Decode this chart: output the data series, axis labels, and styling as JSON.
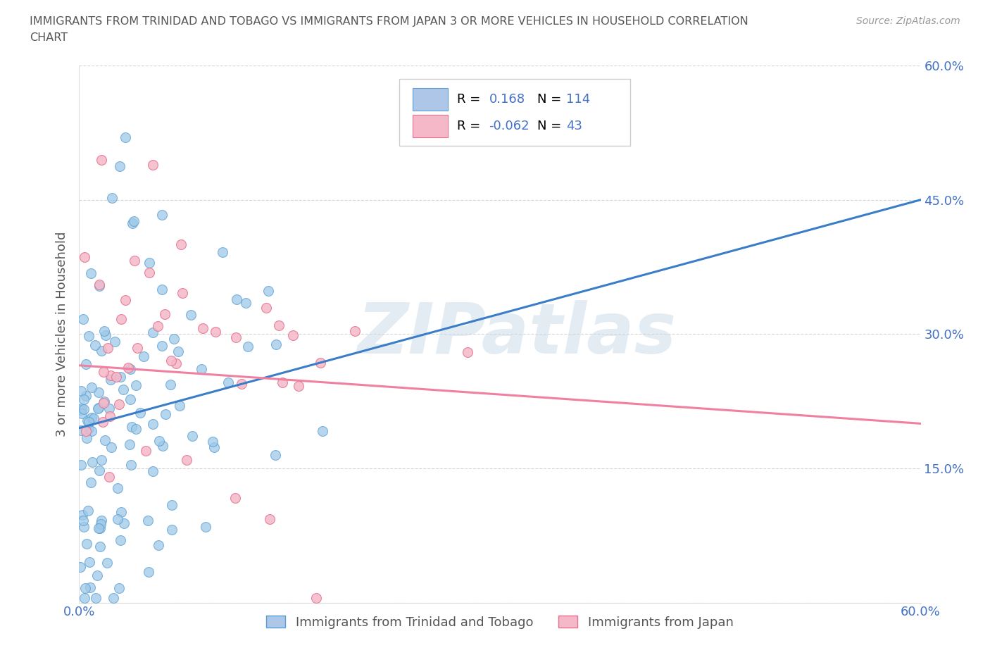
{
  "title_line1": "IMMIGRANTS FROM TRINIDAD AND TOBAGO VS IMMIGRANTS FROM JAPAN 3 OR MORE VEHICLES IN HOUSEHOLD CORRELATION",
  "title_line2": "CHART",
  "source_text": "Source: ZipAtlas.com",
  "ylabel": "3 or more Vehicles in Household",
  "watermark": "ZIPatlas",
  "xlim": [
    0.0,
    0.6
  ],
  "ylim": [
    0.0,
    0.6
  ],
  "ytick_vals": [
    0.0,
    0.15,
    0.3,
    0.45,
    0.6
  ],
  "ytick_labels_right": [
    "",
    "15.0%",
    "30.0%",
    "45.0%",
    "60.0%"
  ],
  "xtick_vals": [
    0.0,
    0.1,
    0.2,
    0.3,
    0.4,
    0.5,
    0.6
  ],
  "xtick_labels": [
    "0.0%",
    "",
    "",
    "",
    "",
    "",
    "60.0%"
  ],
  "series1_color": "#9ec9e8",
  "series1_edge": "#5a9fd4",
  "series2_color": "#f4b8c8",
  "series2_edge": "#e87090",
  "trend1_color": "#3a7ec8",
  "trend2_color": "#f080a0",
  "R1": 0.168,
  "N1": 114,
  "R2": -0.062,
  "N2": 43,
  "background_color": "#ffffff",
  "grid_color": "#cccccc",
  "title_color": "#555555",
  "axis_label_color": "#555555",
  "tick_label_color": "#4472c4",
  "watermark_color": "#c8d8e8",
  "legend_box_color": "#aec6e8",
  "legend_pink_color": "#f4b8c8",
  "seed": 42
}
